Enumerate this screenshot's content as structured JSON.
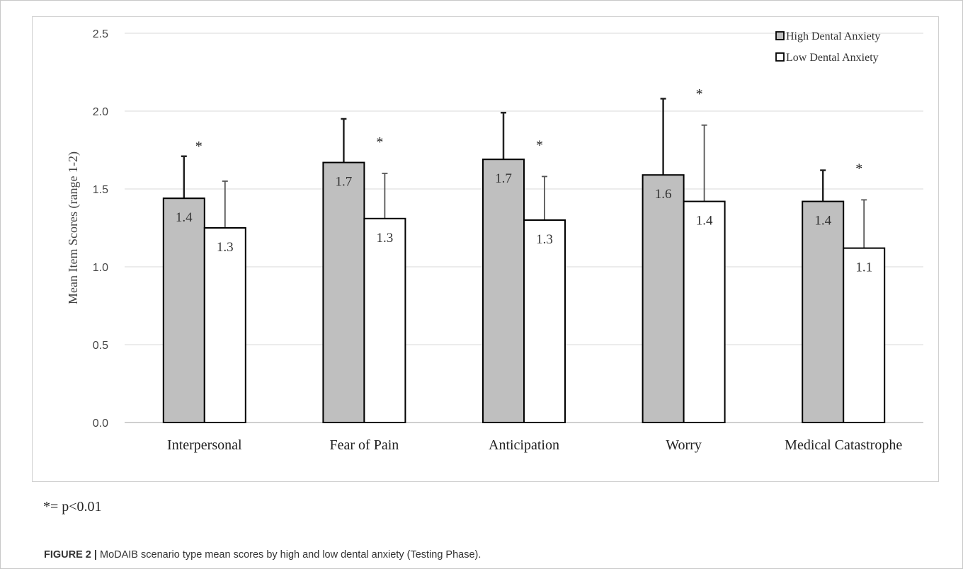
{
  "chart_data": {
    "type": "bar",
    "categories": [
      "Interpersonal",
      "Fear of Pain",
      "Anticipation",
      "Worry",
      "Medical Catastrophe"
    ],
    "series": [
      {
        "name": "High Dental Anxiety",
        "color": "#bfbfbf",
        "values": [
          1.44,
          1.67,
          1.69,
          1.59,
          1.42
        ],
        "error_upper": [
          1.71,
          1.95,
          1.99,
          2.08,
          1.62
        ],
        "labels": [
          "1.4",
          "1.7",
          "1.7",
          "1.6",
          "1.4"
        ]
      },
      {
        "name": "Low Dental Anxiety",
        "color": "#ffffff",
        "values": [
          1.25,
          1.31,
          1.3,
          1.42,
          1.12
        ],
        "error_upper": [
          1.55,
          1.6,
          1.58,
          1.91,
          1.43
        ],
        "labels": [
          "1.3",
          "1.3",
          "1.3",
          "1.4",
          "1.1"
        ]
      }
    ],
    "significance_marks": [
      "*",
      "*",
      "*",
      "*",
      "*"
    ],
    "ylabel": "Mean Item Scores (range 1-2)",
    "ylim": [
      0,
      2.5
    ],
    "yticks": [
      "0.0",
      "0.5",
      "1.0",
      "1.5",
      "2.0",
      "2.5"
    ],
    "grid": true,
    "legend_position": "top-right"
  },
  "footnote": "*= p<0.01",
  "caption": {
    "label": "FIGURE 2 |",
    "text": " MoDAIB scenario type mean scores by high and low dental anxiety (Testing Phase)."
  }
}
